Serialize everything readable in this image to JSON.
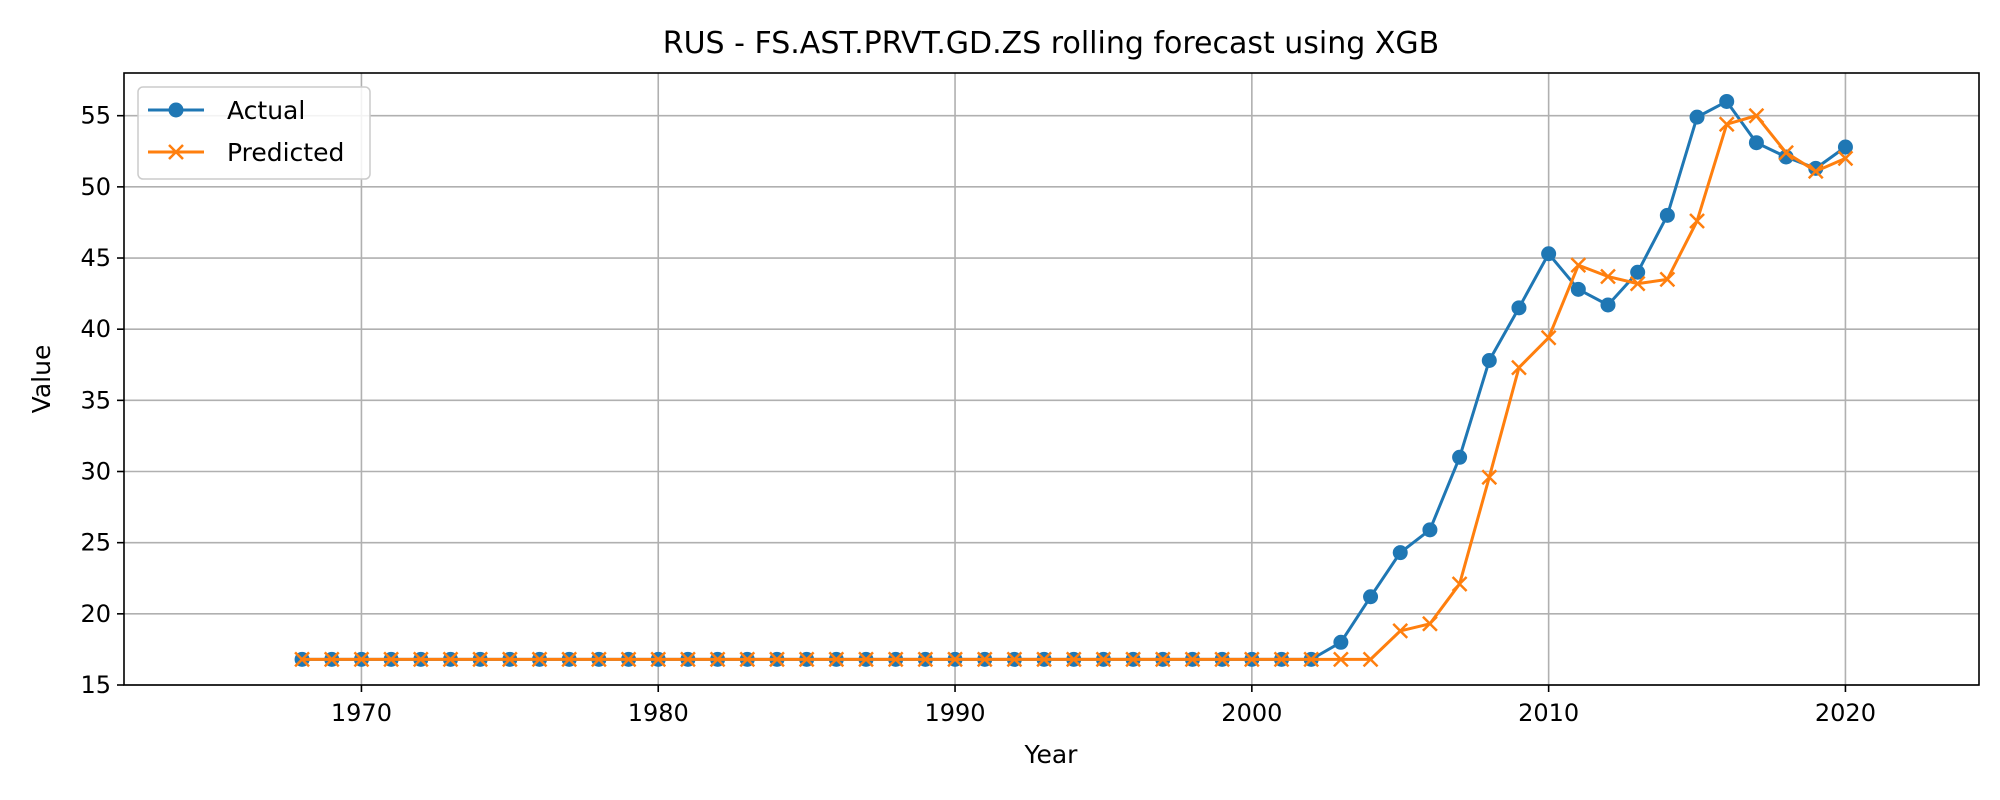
{
  "chart_data": {
    "type": "line",
    "title": "RUS - FS.AST.PRVT.GD.ZS rolling forecast using XGB",
    "xlabel": "Year",
    "ylabel": "Value",
    "xlim": [
      1962,
      2024.5
    ],
    "ylim": [
      15,
      58
    ],
    "xticks": [
      1970,
      1980,
      1990,
      2000,
      2010,
      2020
    ],
    "yticks": [
      15,
      20,
      25,
      30,
      35,
      40,
      45,
      50,
      55
    ],
    "grid": true,
    "legend_position": "top-left",
    "x": [
      1968,
      1969,
      1970,
      1971,
      1972,
      1973,
      1974,
      1975,
      1976,
      1977,
      1978,
      1979,
      1980,
      1981,
      1982,
      1983,
      1984,
      1985,
      1986,
      1987,
      1988,
      1989,
      1990,
      1991,
      1992,
      1993,
      1994,
      1995,
      1996,
      1997,
      1998,
      1999,
      2000,
      2001,
      2002,
      2003,
      2004,
      2005,
      2006,
      2007,
      2008,
      2009,
      2010,
      2011,
      2012,
      2013,
      2014,
      2015,
      2016,
      2017,
      2018,
      2019,
      2020
    ],
    "series": [
      {
        "name": "Actual",
        "color": "#1f77b4",
        "marker": "circle",
        "values": [
          16.8,
          16.8,
          16.8,
          16.8,
          16.8,
          16.8,
          16.8,
          16.8,
          16.8,
          16.8,
          16.8,
          16.8,
          16.8,
          16.8,
          16.8,
          16.8,
          16.8,
          16.8,
          16.8,
          16.8,
          16.8,
          16.8,
          16.8,
          16.8,
          16.8,
          16.8,
          16.8,
          16.8,
          16.8,
          16.8,
          16.8,
          16.8,
          16.8,
          16.8,
          16.8,
          18.0,
          21.2,
          24.3,
          25.9,
          31.0,
          37.8,
          41.5,
          45.3,
          42.8,
          41.7,
          44.0,
          48.0,
          54.9,
          56.0,
          53.1,
          52.1,
          51.3,
          52.8
        ]
      },
      {
        "name": "Predicted",
        "color": "#ff7f0e",
        "marker": "x",
        "values": [
          16.8,
          16.8,
          16.8,
          16.8,
          16.8,
          16.8,
          16.8,
          16.8,
          16.8,
          16.8,
          16.8,
          16.8,
          16.8,
          16.8,
          16.8,
          16.8,
          16.8,
          16.8,
          16.8,
          16.8,
          16.8,
          16.8,
          16.8,
          16.8,
          16.8,
          16.8,
          16.8,
          16.8,
          16.8,
          16.8,
          16.8,
          16.8,
          16.8,
          16.8,
          16.8,
          16.8,
          16.8,
          18.8,
          19.3,
          22.1,
          29.6,
          37.3,
          39.4,
          44.5,
          43.7,
          43.2,
          43.5,
          47.6,
          54.4,
          55.0,
          52.4,
          51.1,
          52.0
        ]
      }
    ]
  }
}
